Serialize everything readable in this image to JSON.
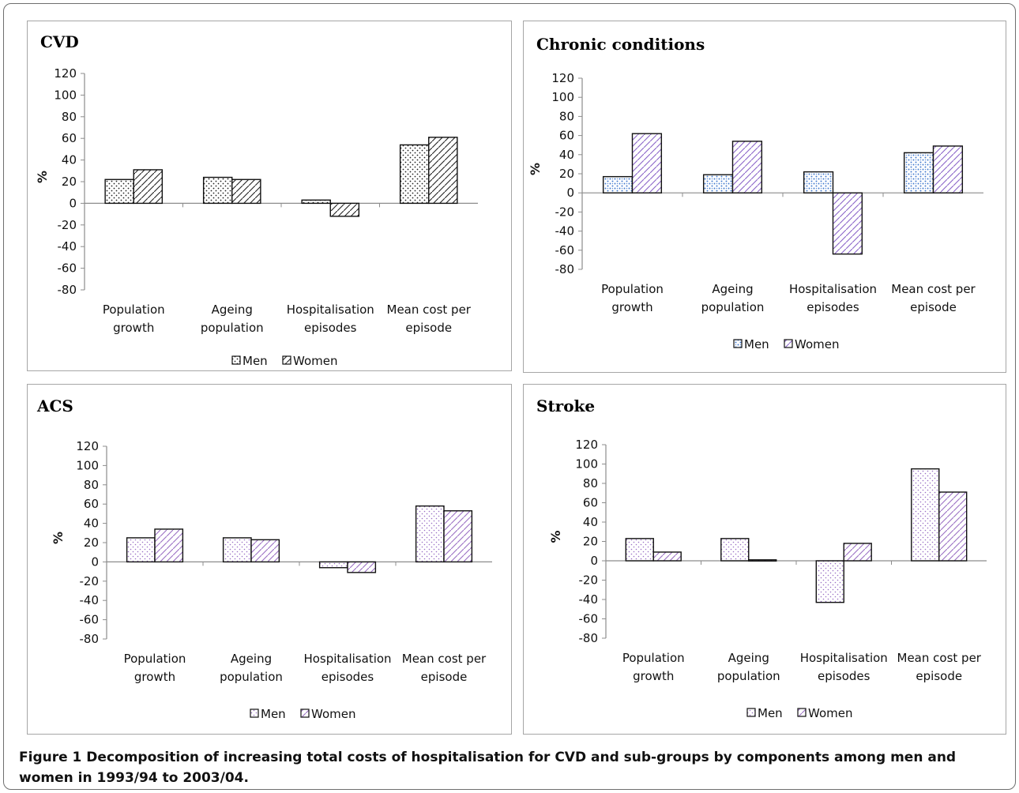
{
  "caption": {
    "label": "Figure 1",
    "text": "Decomposition of increasing total costs of hospitalisation for CVD and sub-groups by components among men and women in 1993/94 to 2003/04."
  },
  "chart_data": [
    {
      "type": "bar",
      "title": "CVD",
      "ylabel": "%",
      "xlabel": "",
      "ylim": [
        -80,
        120
      ],
      "yticks": [
        120,
        100,
        80,
        60,
        40,
        20,
        0,
        -20,
        -40,
        -60,
        -80
      ],
      "categories": [
        [
          "Population",
          "growth"
        ],
        [
          "Ageing",
          "population"
        ],
        [
          "Hospitalisation",
          "episodes"
        ],
        [
          "Mean cost per",
          "episode"
        ]
      ],
      "series": [
        {
          "name": "Men",
          "values": [
            22,
            24,
            3,
            54
          ]
        },
        {
          "name": "Women",
          "values": [
            31,
            22,
            -12,
            61
          ]
        }
      ],
      "legend": "bottom",
      "grid": false
    },
    {
      "type": "bar",
      "title": "Chronic conditions",
      "ylabel": "%",
      "xlabel": "",
      "ylim": [
        -80,
        120
      ],
      "yticks": [
        120,
        100,
        80,
        60,
        40,
        20,
        0,
        -20,
        -40,
        -60,
        -80
      ],
      "categories": [
        [
          "Population",
          "growth"
        ],
        [
          "Ageing",
          "population"
        ],
        [
          "Hospitalisation",
          "episodes"
        ],
        [
          "Mean cost per",
          "episode"
        ]
      ],
      "series": [
        {
          "name": "Men",
          "values": [
            17,
            19,
            22,
            42
          ]
        },
        {
          "name": "Women",
          "values": [
            62,
            54,
            -64,
            49
          ]
        }
      ],
      "legend": "bottom",
      "grid": false
    },
    {
      "type": "bar",
      "title": "ACS",
      "ylabel": "%",
      "xlabel": "",
      "ylim": [
        -80,
        120
      ],
      "yticks": [
        120,
        100,
        80,
        60,
        40,
        20,
        0,
        -20,
        -40,
        -60,
        -80
      ],
      "categories": [
        [
          "Population",
          "growth"
        ],
        [
          "Ageing",
          "population"
        ],
        [
          "Hospitalisation",
          "episodes"
        ],
        [
          "Mean cost per",
          "episode"
        ]
      ],
      "series": [
        {
          "name": "Men",
          "values": [
            25,
            25,
            -6,
            58
          ]
        },
        {
          "name": "Women",
          "values": [
            34,
            23,
            -11,
            53
          ]
        }
      ],
      "legend": "bottom",
      "grid": false
    },
    {
      "type": "bar",
      "title": "Stroke",
      "ylabel": "%",
      "xlabel": "",
      "ylim": [
        -80,
        120
      ],
      "yticks": [
        120,
        100,
        80,
        60,
        40,
        20,
        0,
        -20,
        -40,
        -60,
        -80
      ],
      "categories": [
        [
          "Population",
          "growth"
        ],
        [
          "Ageing",
          "population"
        ],
        [
          "Hospitalisation",
          "episodes"
        ],
        [
          "Mean cost per",
          "episode"
        ]
      ],
      "series": [
        {
          "name": "Men",
          "values": [
            23,
            23,
            -43,
            95
          ]
        },
        {
          "name": "Women",
          "values": [
            9,
            1,
            18,
            71
          ]
        }
      ],
      "legend": "bottom",
      "grid": false
    }
  ]
}
